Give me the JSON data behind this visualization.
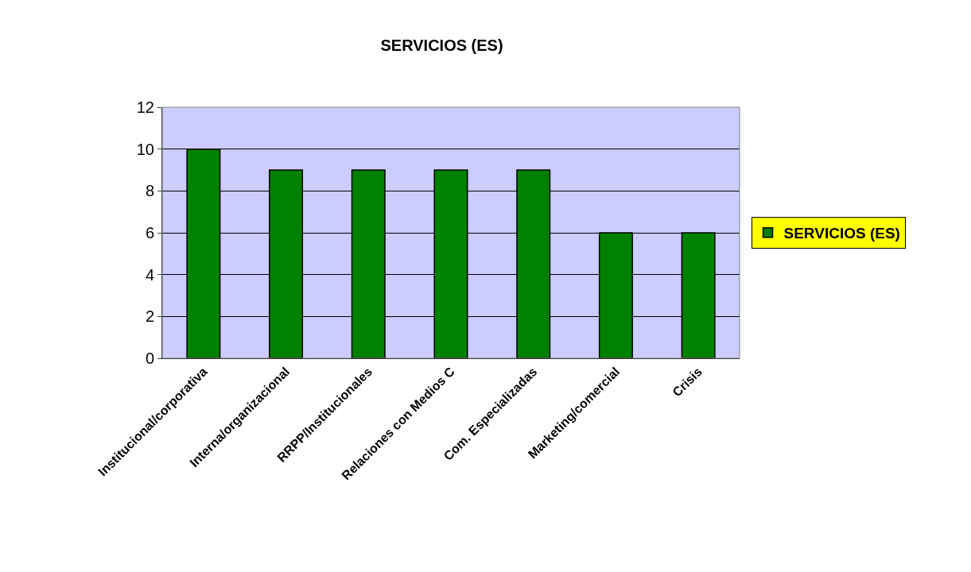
{
  "chart_data": {
    "type": "bar",
    "title": "SERVICIOS (ES)",
    "categories": [
      "Institucional/corporativa",
      "Interna/organizacional",
      "RRPP/Institucionales",
      "Relaciones con Medios C",
      "Com. Especializadas",
      "Marketing/comercial",
      "Crisis"
    ],
    "series": [
      {
        "name": "SERVICIOS (ES)",
        "color": "#008000",
        "values": [
          10,
          9,
          9,
          9,
          9,
          6,
          6
        ]
      }
    ],
    "ylim": [
      0,
      12
    ],
    "yticks": [
      0,
      2,
      4,
      6,
      8,
      10,
      12
    ],
    "grid": "y",
    "legend": "right"
  }
}
